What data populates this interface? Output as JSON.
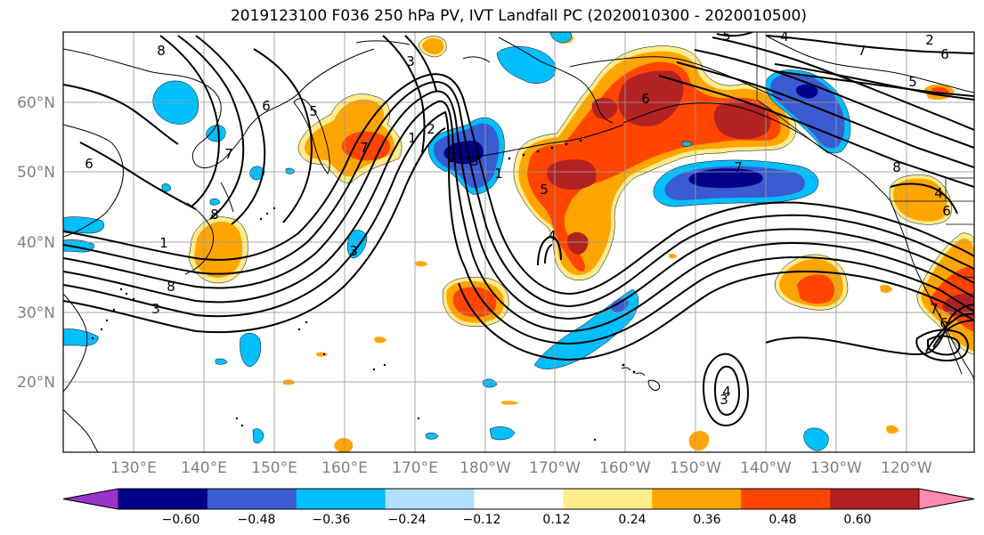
{
  "title": "2019123100 F036 250 hPa PV, IVT Landfall PC (2020010300 - 2020010500)",
  "map": {
    "lat_ticks": [
      "60°N",
      "50°N",
      "40°N",
      "30°N",
      "20°N"
    ],
    "lon_ticks": [
      "130°E",
      "140°E",
      "150°E",
      "160°E",
      "170°E",
      "180°W",
      "170°W",
      "160°W",
      "150°W",
      "140°W",
      "130°W",
      "120°W"
    ],
    "contour_labels": [
      "8",
      "6",
      "5",
      "3",
      "2",
      "1",
      "7",
      "2",
      "3",
      "5",
      "4",
      "7",
      "6",
      "5",
      "4",
      "2",
      "1",
      "8",
      "3",
      "6",
      "7",
      "8",
      "3",
      "1",
      "5",
      "6",
      "7",
      "4",
      "8",
      "6",
      "7",
      "6",
      "4",
      "3"
    ]
  },
  "colorbar": {
    "colors": [
      "#9932cc",
      "#00008b",
      "#3a5bd1",
      "#00bfff",
      "#b0e2ff",
      "#ffffff",
      "#ffec8b",
      "#ffa500",
      "#ff4500",
      "#b22222",
      "#ff89b0"
    ],
    "ticks": [
      "−0.60",
      "−0.48",
      "−0.36",
      "−0.24",
      "−0.12",
      "0.12",
      "0.24",
      "0.36",
      "0.48",
      "0.60"
    ]
  },
  "colors": {
    "pos_light": "#ffec8b",
    "pos_orange": "#ffa500",
    "pos_red": "#ff4500",
    "pos_dark": "#b22222",
    "neg_light": "#00bfff",
    "neg_mid": "#3a5bd1",
    "neg_dark": "#00008b",
    "contour": "#000000",
    "grid": "#9a9a9a",
    "tick_label": "#808080"
  }
}
